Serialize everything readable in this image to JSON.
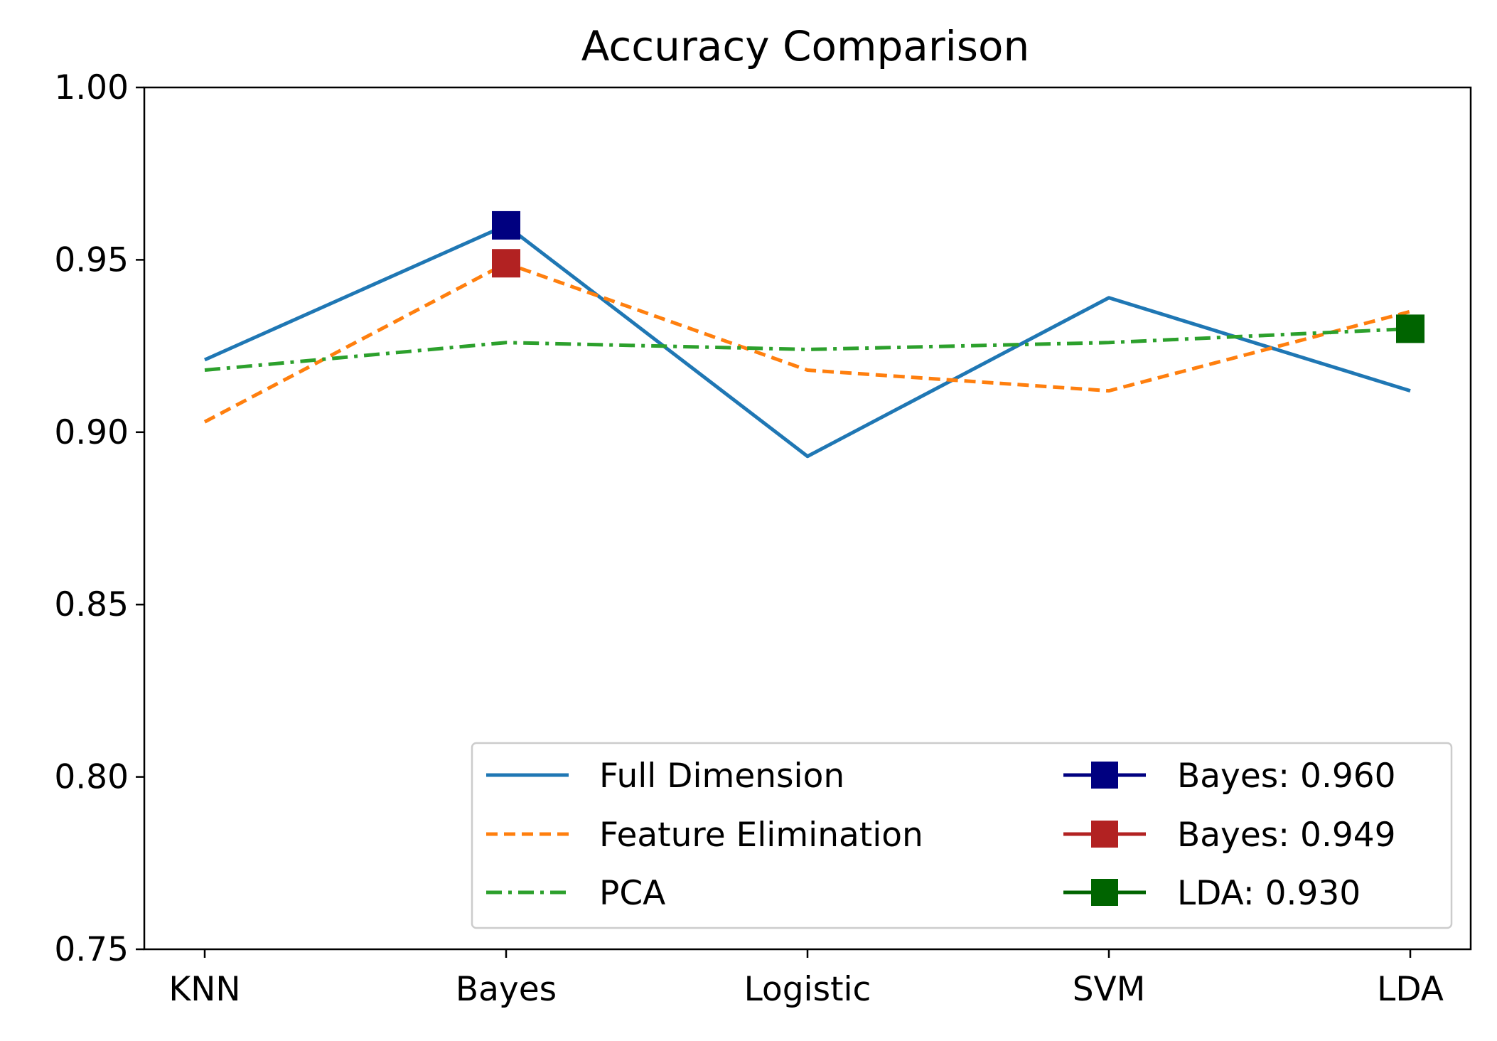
{
  "chart_data": {
    "type": "line",
    "title": "Accuracy Comparison",
    "xlabel": "",
    "ylabel": "",
    "categories": [
      "KNN",
      "Bayes",
      "Logistic",
      "SVM",
      "LDA"
    ],
    "ylim": [
      0.75,
      1.0
    ],
    "yticks": [
      "0.75",
      "0.80",
      "0.85",
      "0.90",
      "0.95",
      "1.00"
    ],
    "grid": false,
    "legend_position": "lower-right",
    "series": [
      {
        "name": "Full Dimension",
        "values": [
          0.921,
          0.96,
          0.893,
          0.939,
          0.912
        ],
        "color": "#1f77b4",
        "dash": "solid"
      },
      {
        "name": "Feature Elimination",
        "values": [
          0.903,
          0.949,
          0.918,
          0.912,
          0.935
        ],
        "color": "#ff7f0e",
        "dash": "dashed"
      },
      {
        "name": "PCA",
        "values": [
          0.918,
          0.926,
          0.924,
          0.926,
          0.93
        ],
        "color": "#2ca02c",
        "dash": "dashdot"
      }
    ],
    "highlights": [
      {
        "label": "Bayes: 0.960",
        "category": "Bayes",
        "value": 0.96,
        "color": "#000080"
      },
      {
        "label": "Bayes: 0.949",
        "category": "Bayes",
        "value": 0.949,
        "color": "#b22222"
      },
      {
        "label": "LDA: 0.930",
        "category": "LDA",
        "value": 0.93,
        "color": "#006400"
      }
    ]
  }
}
